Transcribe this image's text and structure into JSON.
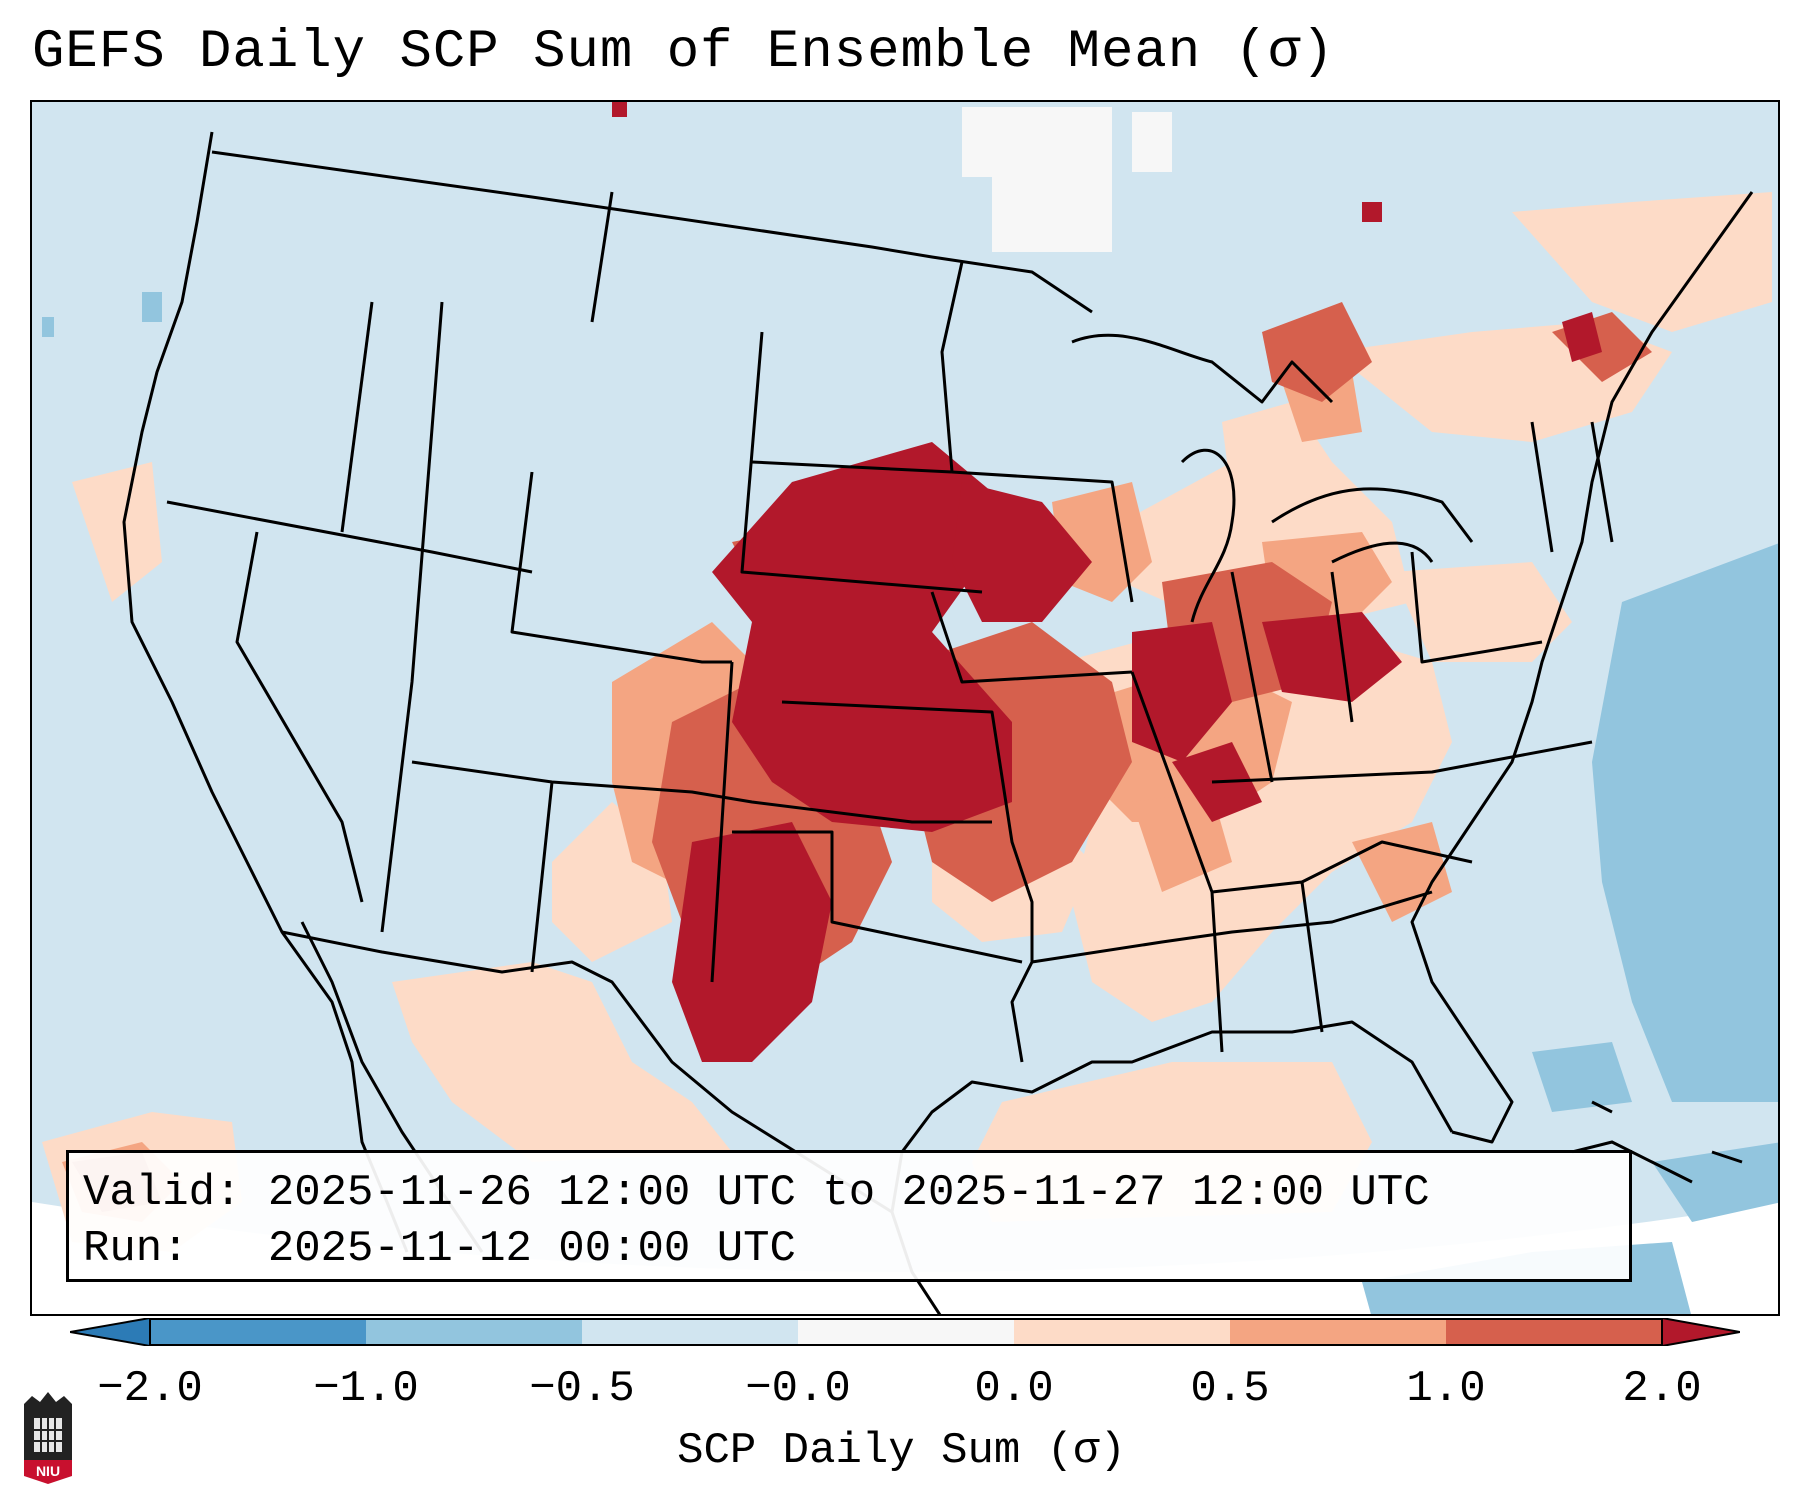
{
  "title": "GEFS Daily SCP Sum of Ensemble Mean (σ)",
  "info": {
    "valid_label": "Valid:",
    "valid_value": "2025-11-26 12:00 UTC to 2025-11-27 12:00 UTC",
    "run_label": "Run:",
    "run_value": "2025-11-12 00:00 UTC"
  },
  "colorbar": {
    "label": "SCP Daily Sum (σ)",
    "ticks": [
      "−2.0",
      "−1.0",
      "−0.5",
      "−0.0",
      "0.0",
      "0.5",
      "1.0",
      "2.0"
    ],
    "colors": {
      "below_min": "#2c7bb6",
      "bin_m2_m1": "#4a96c8",
      "bin_m1_m05": "#92c5de",
      "bin_m05_0": "#d1e5f0",
      "bin_0": "#f7f7f7",
      "bin_0_05": "#fddbc7",
      "bin_05_1": "#f4a582",
      "bin_1_2": "#d6604d",
      "above_max": "#b2182b"
    }
  },
  "logo": {
    "text": "NIU"
  },
  "map": {
    "region": "Continental United States",
    "projection": "Lambert Conformal"
  }
}
